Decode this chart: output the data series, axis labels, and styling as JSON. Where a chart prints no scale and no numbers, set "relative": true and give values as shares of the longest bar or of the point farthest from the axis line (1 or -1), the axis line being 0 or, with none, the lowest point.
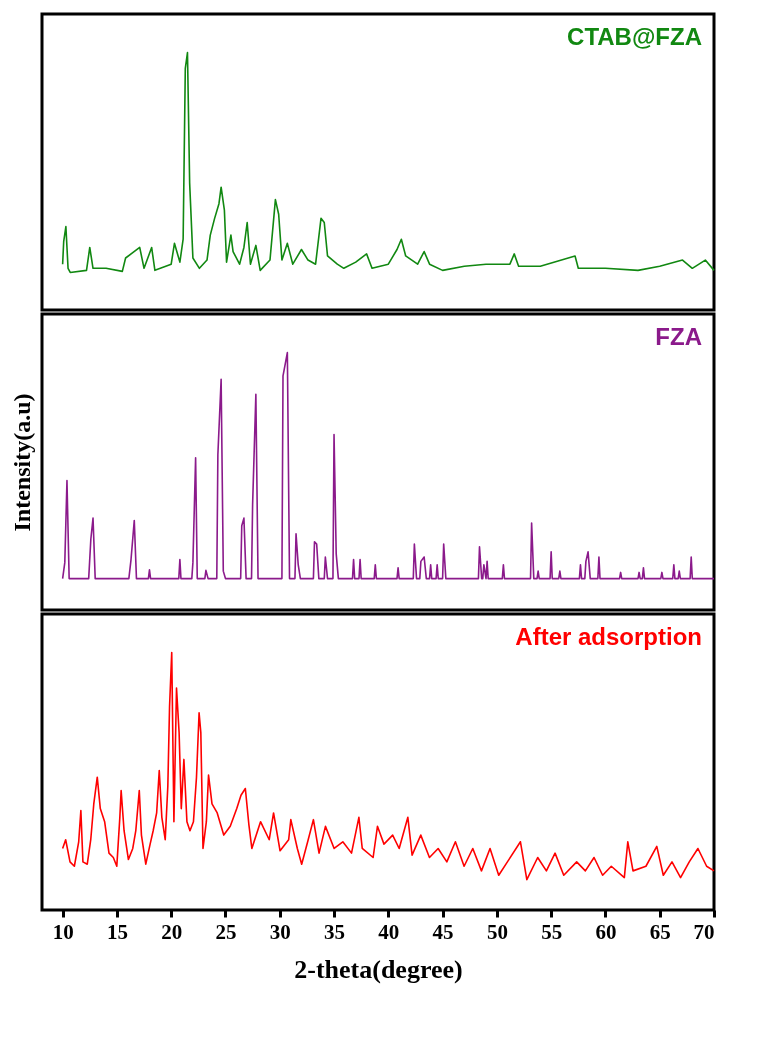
{
  "chart_data": [
    {
      "type": "line",
      "relative": true,
      "tick_labels": false,
      "grid": false,
      "marker": "none",
      "line_style": "solid",
      "xlim": [
        8.1,
        70
      ],
      "x": [
        10.0,
        10.1,
        10.3,
        10.5,
        10.7,
        12.2,
        12.5,
        12.8,
        14,
        15.5,
        15.8,
        17.1,
        17.5,
        18.2,
        18.5,
        20,
        20.3,
        20.8,
        21.1,
        21.3,
        21.5,
        21.7,
        22,
        22.6,
        23.3,
        23.6,
        24,
        24.4,
        24.6,
        24.9,
        25.1,
        25.5,
        25.7,
        26.3,
        26.7,
        27,
        27.3,
        27.8,
        28.2,
        29.1,
        29.6,
        29.9,
        30.2,
        30.7,
        31.2,
        32,
        32.6,
        33.3,
        33.8,
        34.1,
        34.4,
        35.3,
        35.9,
        37,
        38,
        38.5,
        40,
        40.8,
        41.2,
        41.6,
        42.7,
        43.3,
        43.8,
        45,
        47,
        49,
        51.2,
        51.6,
        52,
        54,
        57.2,
        57.5,
        60,
        63,
        65,
        67.1,
        68,
        69.2,
        70
      ],
      "series": [
        {
          "name": "CTAB@FZA",
          "color": "#118811",
          "values": [
            0.178,
            0.267,
            0.324,
            0.162,
            0.146,
            0.154,
            0.243,
            0.162,
            0.162,
            0.15,
            0.202,
            0.243,
            0.162,
            0.243,
            0.154,
            0.178,
            0.259,
            0.186,
            0.275,
            0.939,
            1,
            0.494,
            0.202,
            0.162,
            0.194,
            0.291,
            0.356,
            0.413,
            0.477,
            0.388,
            0.186,
            0.291,
            0.227,
            0.178,
            0.243,
            0.34,
            0.178,
            0.251,
            0.154,
            0.194,
            0.429,
            0.372,
            0.194,
            0.259,
            0.178,
            0.235,
            0.194,
            0.178,
            0.356,
            0.34,
            0.21,
            0.178,
            0.162,
            0.186,
            0.218,
            0.162,
            0.178,
            0.235,
            0.275,
            0.21,
            0.178,
            0.227,
            0.178,
            0.154,
            0.17,
            0.178,
            0.178,
            0.218,
            0.17,
            0.17,
            0.21,
            0.162,
            0.162,
            0.154,
            0.17,
            0.194,
            0.162,
            0.194,
            0.154
          ]
        }
      ]
    },
    {
      "type": "line",
      "relative": true,
      "tick_labels": false,
      "grid": false,
      "marker": "none",
      "line_style": "solid",
      "xlim": [
        8.1,
        70
      ],
      "ylabel": "Intensity(a.u)",
      "x": [
        10.0,
        10.2,
        10.4,
        10.6,
        12.4,
        12.6,
        12.8,
        13.0,
        16.1,
        16.3,
        16.6,
        16.8,
        17.9,
        18.0,
        18.1,
        20.7,
        20.8,
        20.9,
        21.9,
        22.0,
        22.25,
        22.4,
        23.1,
        23.2,
        23.4,
        24.2,
        24.3,
        24.6,
        24.8,
        25.0,
        26.4,
        26.5,
        26.7,
        26.9,
        27.4,
        27.5,
        27.8,
        28.0,
        30.2,
        30.3,
        30.7,
        30.9,
        31.4,
        31.5,
        31.7,
        31.9,
        33.1,
        33.2,
        33.4,
        33.6,
        34.1,
        34.2,
        34.4,
        34.9,
        35.0,
        35.2,
        35.4,
        36.7,
        36.8,
        36.9,
        37.3,
        37.4,
        37.5,
        38.7,
        38.8,
        38.9,
        40.8,
        40.9,
        41.0,
        42.3,
        42.4,
        42.6,
        42.9,
        43.0,
        43.3,
        43.5,
        43.8,
        43.9,
        44.0,
        44.4,
        44.5,
        44.6,
        45.0,
        45.1,
        45.3,
        48.3,
        48.4,
        48.6,
        48.7,
        48.8,
        49.0,
        49.1,
        49.2,
        50.5,
        50.6,
        50.7,
        53.1,
        53.2,
        53.4,
        53.7,
        53.8,
        53.9,
        54.9,
        55.0,
        55.1,
        55.7,
        55.8,
        55.9,
        57.6,
        57.7,
        57.8,
        58.1,
        58.2,
        58.4,
        58.6,
        59.3,
        59.4,
        59.5,
        61.3,
        61.4,
        61.5,
        63.0,
        63.1,
        63.2,
        63.4,
        63.5,
        63.6,
        65.1,
        65.2,
        65.3,
        66.2,
        66.3,
        66.4,
        66.7,
        66.8,
        66.9,
        67.8,
        67.9,
        68.0,
        70.0
      ],
      "series": [
        {
          "name": "FZA",
          "color": "#8b1a8b",
          "values": [
            0.122,
            0.184,
            0.503,
            0.122,
            0.122,
            0.276,
            0.357,
            0.122,
            0.122,
            0.196,
            0.348,
            0.122,
            0.122,
            0.156,
            0.122,
            0.122,
            0.196,
            0.122,
            0.122,
            0.184,
            0.591,
            0.122,
            0.122,
            0.154,
            0.122,
            0.122,
            0.603,
            0.896,
            0.151,
            0.122,
            0.122,
            0.327,
            0.357,
            0.122,
            0.122,
            0.41,
            0.838,
            0.122,
            0.122,
            0.91,
            1,
            0.122,
            0.122,
            0.296,
            0.176,
            0.122,
            0.122,
            0.265,
            0.256,
            0.122,
            0.122,
            0.206,
            0.122,
            0.122,
            0.682,
            0.218,
            0.122,
            0.122,
            0.196,
            0.122,
            0.122,
            0.196,
            0.122,
            0.122,
            0.176,
            0.122,
            0.122,
            0.164,
            0.122,
            0.122,
            0.256,
            0.122,
            0.122,
            0.189,
            0.206,
            0.122,
            0.122,
            0.176,
            0.122,
            0.122,
            0.176,
            0.122,
            0.122,
            0.256,
            0.122,
            0.122,
            0.246,
            0.122,
            0.122,
            0.176,
            0.122,
            0.189,
            0.122,
            0.122,
            0.176,
            0.122,
            0.122,
            0.338,
            0.122,
            0.122,
            0.151,
            0.122,
            0.122,
            0.226,
            0.122,
            0.122,
            0.151,
            0.122,
            0.122,
            0.176,
            0.122,
            0.122,
            0.189,
            0.226,
            0.122,
            0.122,
            0.206,
            0.122,
            0.122,
            0.146,
            0.122,
            0.122,
            0.146,
            0.122,
            0.122,
            0.164,
            0.122,
            0.122,
            0.146,
            0.122,
            0.122,
            0.176,
            0.122,
            0.122,
            0.151,
            0.122,
            0.122,
            0.206,
            0.122,
            0.122
          ]
        }
      ]
    },
    {
      "type": "line",
      "relative": true,
      "tick_labels": "x",
      "grid": false,
      "marker": "none",
      "line_style": "solid",
      "xlim": [
        8.1,
        70
      ],
      "xticks": [
        10,
        15,
        20,
        25,
        30,
        35,
        40,
        45,
        50,
        55,
        60,
        65,
        70
      ],
      "xlabel": "2-theta(degree)",
      "x": [
        10.0,
        10.28,
        10.68,
        11.08,
        11.48,
        11.68,
        11.87,
        12.27,
        12.59,
        12.87,
        13.19,
        13.47,
        13.87,
        14.27,
        14.67,
        14.99,
        15.27,
        15.39,
        15.66,
        16.06,
        16.46,
        16.74,
        17.06,
        17.26,
        17.66,
        18.06,
        18.34,
        18.66,
        18.9,
        19.14,
        19.45,
        19.69,
        19.85,
        20.05,
        20.25,
        20.49,
        20.73,
        20.93,
        21.17,
        21.45,
        21.73,
        22.05,
        22.33,
        22.57,
        22.73,
        22.93,
        23.24,
        23.44,
        23.76,
        24.24,
        24.84,
        25.44,
        26.04,
        26.43,
        26.83,
        27.15,
        27.43,
        28.23,
        29.03,
        29.43,
        30.03,
        30.82,
        31.02,
        31.62,
        32.02,
        32.62,
        33.1,
        33.62,
        34.21,
        35.01,
        35.81,
        36.61,
        37.29,
        37.6,
        38.6,
        39.0,
        39.6,
        40.4,
        41.0,
        41.8,
        42.19,
        42.99,
        43.79,
        44.59,
        45.39,
        46.18,
        46.98,
        47.78,
        48.58,
        49.37,
        50.17,
        50.97,
        52.17,
        52.76,
        53.76,
        54.56,
        55.36,
        56.16,
        57.35,
        58.15,
        58.95,
        59.74,
        60.54,
        61.74,
        62.06,
        62.54,
        63.73,
        64.73,
        65.33,
        66.13,
        66.92,
        67.72,
        68.52,
        69.32,
        70.0
      ],
      "series": [
        {
          "name": "After adsorption",
          "color": "#ff0000",
          "values": [
            0.239,
            0.273,
            0.187,
            0.17,
            0.265,
            0.386,
            0.187,
            0.178,
            0.273,
            0.412,
            0.516,
            0.394,
            0.343,
            0.221,
            0.204,
            0.17,
            0.36,
            0.464,
            0.308,
            0.196,
            0.239,
            0.308,
            0.464,
            0.291,
            0.178,
            0.256,
            0.308,
            0.377,
            0.542,
            0.36,
            0.273,
            0.481,
            0.792,
            1,
            0.343,
            0.862,
            0.689,
            0.394,
            0.585,
            0.343,
            0.308,
            0.343,
            0.516,
            0.766,
            0.689,
            0.239,
            0.343,
            0.524,
            0.412,
            0.377,
            0.291,
            0.325,
            0.394,
            0.446,
            0.472,
            0.334,
            0.239,
            0.343,
            0.273,
            0.377,
            0.23,
            0.273,
            0.351,
            0.239,
            0.178,
            0.273,
            0.351,
            0.221,
            0.325,
            0.239,
            0.265,
            0.221,
            0.36,
            0.239,
            0.204,
            0.325,
            0.256,
            0.291,
            0.239,
            0.36,
            0.213,
            0.291,
            0.204,
            0.239,
            0.187,
            0.265,
            0.17,
            0.239,
            0.152,
            0.239,
            0.135,
            0.187,
            0.265,
            0.118,
            0.204,
            0.152,
            0.221,
            0.135,
            0.187,
            0.152,
            0.204,
            0.135,
            0.17,
            0.126,
            0.265,
            0.152,
            0.17,
            0.247,
            0.135,
            0.187,
            0.126,
            0.187,
            0.239,
            0.17,
            0.152
          ]
        }
      ]
    }
  ]
}
